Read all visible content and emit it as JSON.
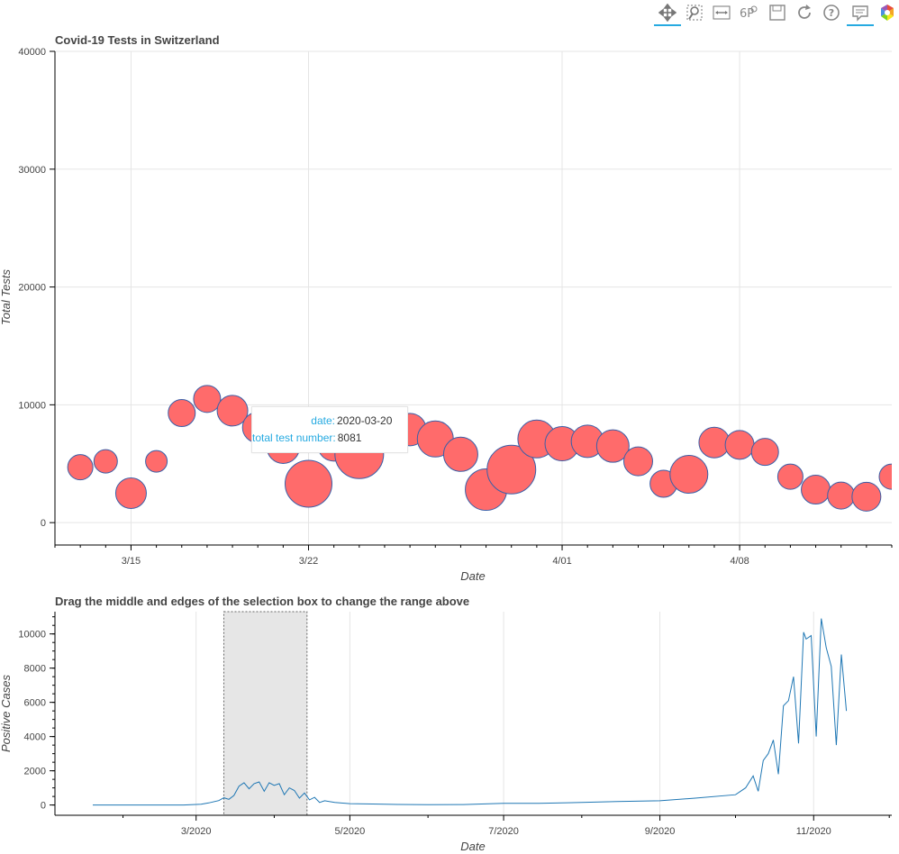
{
  "toolbar": {
    "tools": [
      "pan-icon",
      "box-zoom-icon",
      "x-wheel-zoom-icon",
      "reset-range-icon",
      "save-icon",
      "reset-icon",
      "help-icon",
      "hover-icon",
      "bokeh-logo-icon"
    ]
  },
  "colors": {
    "bubble_fill": "#ff6b6b",
    "bubble_stroke": "#3a5fa8",
    "line": "#1f77b4",
    "selection": "#e6e6e6",
    "grid": "#e5e5e5",
    "tooltip_key": "#26aae1"
  },
  "tooltip": {
    "date_label": "date:",
    "date_value": "2020-03-20",
    "tests_label": "total test number:",
    "tests_value": "8081"
  },
  "chart_data": [
    {
      "type": "scatter",
      "title": "Covid-19 Tests in Switzerland",
      "xlabel": "Date",
      "ylabel": "Total Tests",
      "xlim": [
        "2020-03-12",
        "2020-04-14"
      ],
      "ylim": [
        -1900,
        40000
      ],
      "yticks": [
        0,
        10000,
        20000,
        30000,
        40000
      ],
      "xticks": [
        {
          "label": "3/15",
          "date": "2020-03-15"
        },
        {
          "label": "3/22",
          "date": "2020-03-22"
        },
        {
          "label": "4/01",
          "date": "2020-04-01"
        },
        {
          "label": "4/08",
          "date": "2020-04-08"
        }
      ],
      "grid": true,
      "points": [
        {
          "date": "2020-03-13",
          "tests": 4700,
          "size": 14
        },
        {
          "date": "2020-03-14",
          "tests": 5200,
          "size": 13
        },
        {
          "date": "2020-03-15",
          "tests": 2500,
          "size": 17
        },
        {
          "date": "2020-03-16",
          "tests": 5200,
          "size": 12
        },
        {
          "date": "2020-03-17",
          "tests": 9300,
          "size": 15
        },
        {
          "date": "2020-03-18",
          "tests": 10500,
          "size": 15
        },
        {
          "date": "2020-03-19",
          "tests": 9500,
          "size": 17
        },
        {
          "date": "2020-03-20",
          "tests": 8081,
          "size": 17
        },
        {
          "date": "2020-03-21",
          "tests": 6400,
          "size": 18
        },
        {
          "date": "2020-03-22",
          "tests": 3300,
          "size": 26
        },
        {
          "date": "2020-03-23",
          "tests": 6600,
          "size": 18
        },
        {
          "date": "2020-03-24",
          "tests": 5800,
          "size": 27
        },
        {
          "date": "2020-03-25",
          "tests": 7600,
          "size": 17
        },
        {
          "date": "2020-03-26",
          "tests": 7900,
          "size": 18
        },
        {
          "date": "2020-03-27",
          "tests": 7100,
          "size": 20
        },
        {
          "date": "2020-03-28",
          "tests": 5800,
          "size": 19
        },
        {
          "date": "2020-03-29",
          "tests": 2800,
          "size": 23
        },
        {
          "date": "2020-03-30",
          "tests": 4500,
          "size": 27
        },
        {
          "date": "2020-03-31",
          "tests": 7100,
          "size": 21
        },
        {
          "date": "2020-04-01",
          "tests": 6700,
          "size": 19
        },
        {
          "date": "2020-04-02",
          "tests": 6900,
          "size": 18
        },
        {
          "date": "2020-04-03",
          "tests": 6500,
          "size": 18
        },
        {
          "date": "2020-04-04",
          "tests": 5200,
          "size": 16
        },
        {
          "date": "2020-04-05",
          "tests": 3300,
          "size": 15
        },
        {
          "date": "2020-04-06",
          "tests": 4100,
          "size": 21
        },
        {
          "date": "2020-04-07",
          "tests": 6800,
          "size": 17
        },
        {
          "date": "2020-04-08",
          "tests": 6600,
          "size": 16
        },
        {
          "date": "2020-04-09",
          "tests": 6000,
          "size": 15
        },
        {
          "date": "2020-04-10",
          "tests": 3900,
          "size": 14
        },
        {
          "date": "2020-04-11",
          "tests": 2800,
          "size": 16
        },
        {
          "date": "2020-04-12",
          "tests": 2300,
          "size": 15
        },
        {
          "date": "2020-04-13",
          "tests": 2200,
          "size": 16
        },
        {
          "date": "2020-04-14",
          "tests": 3900,
          "size": 14
        }
      ]
    },
    {
      "type": "line",
      "title": "Drag the middle and edges of the selection box to change the range above",
      "xlabel": "Date",
      "ylabel": "Positive Cases",
      "xlim": [
        "2020-01-05",
        "2020-12-02"
      ],
      "ylim": [
        -600,
        11300
      ],
      "yticks": [
        0,
        2000,
        4000,
        6000,
        8000,
        10000
      ],
      "xticks": [
        {
          "label": "3/2020",
          "date": "2020-03-01"
        },
        {
          "label": "5/2020",
          "date": "2020-05-01"
        },
        {
          "label": "7/2020",
          "date": "2020-07-01"
        },
        {
          "label": "9/2020",
          "date": "2020-09-01"
        },
        {
          "label": "11/2020",
          "date": "2020-11-01"
        }
      ],
      "selection": [
        "2020-03-12",
        "2020-04-14"
      ],
      "grid": true,
      "series": [
        {
          "values": [
            [
              "2020-01-20",
              0
            ],
            [
              "2020-02-25",
              0
            ],
            [
              "2020-03-03",
              40
            ],
            [
              "2020-03-06",
              120
            ],
            [
              "2020-03-10",
              260
            ],
            [
              "2020-03-12",
              420
            ],
            [
              "2020-03-14",
              330
            ],
            [
              "2020-03-16",
              560
            ],
            [
              "2020-03-18",
              1100
            ],
            [
              "2020-03-20",
              1300
            ],
            [
              "2020-03-22",
              950
            ],
            [
              "2020-03-24",
              1250
            ],
            [
              "2020-03-26",
              1350
            ],
            [
              "2020-03-28",
              800
            ],
            [
              "2020-03-30",
              1300
            ],
            [
              "2020-04-01",
              1150
            ],
            [
              "2020-04-03",
              1250
            ],
            [
              "2020-04-05",
              600
            ],
            [
              "2020-04-07",
              1000
            ],
            [
              "2020-04-09",
              850
            ],
            [
              "2020-04-11",
              400
            ],
            [
              "2020-04-13",
              700
            ],
            [
              "2020-04-15",
              300
            ],
            [
              "2020-04-17",
              450
            ],
            [
              "2020-04-19",
              150
            ],
            [
              "2020-04-21",
              250
            ],
            [
              "2020-04-25",
              150
            ],
            [
              "2020-05-01",
              80
            ],
            [
              "2020-05-10",
              60
            ],
            [
              "2020-05-20",
              30
            ],
            [
              "2020-06-01",
              20
            ],
            [
              "2020-06-15",
              25
            ],
            [
              "2020-07-01",
              100
            ],
            [
              "2020-07-15",
              100
            ],
            [
              "2020-08-01",
              150
            ],
            [
              "2020-08-15",
              200
            ],
            [
              "2020-09-01",
              250
            ],
            [
              "2020-09-15",
              400
            ],
            [
              "2020-10-01",
              600
            ],
            [
              "2020-10-05",
              1000
            ],
            [
              "2020-10-08",
              1700
            ],
            [
              "2020-10-10",
              800
            ],
            [
              "2020-10-12",
              2600
            ],
            [
              "2020-10-14",
              3000
            ],
            [
              "2020-10-16",
              3800
            ],
            [
              "2020-10-18",
              1800
            ],
            [
              "2020-10-20",
              5800
            ],
            [
              "2020-10-22",
              6100
            ],
            [
              "2020-10-24",
              7500
            ],
            [
              "2020-10-26",
              3600
            ],
            [
              "2020-10-28",
              10100
            ],
            [
              "2020-10-29",
              9700
            ],
            [
              "2020-10-31",
              9900
            ],
            [
              "2020-11-02",
              4000
            ],
            [
              "2020-11-04",
              10900
            ],
            [
              "2020-11-06",
              9200
            ],
            [
              "2020-11-08",
              8100
            ],
            [
              "2020-11-10",
              3500
            ],
            [
              "2020-11-12",
              8800
            ],
            [
              "2020-11-14",
              5500
            ]
          ]
        }
      ]
    }
  ]
}
